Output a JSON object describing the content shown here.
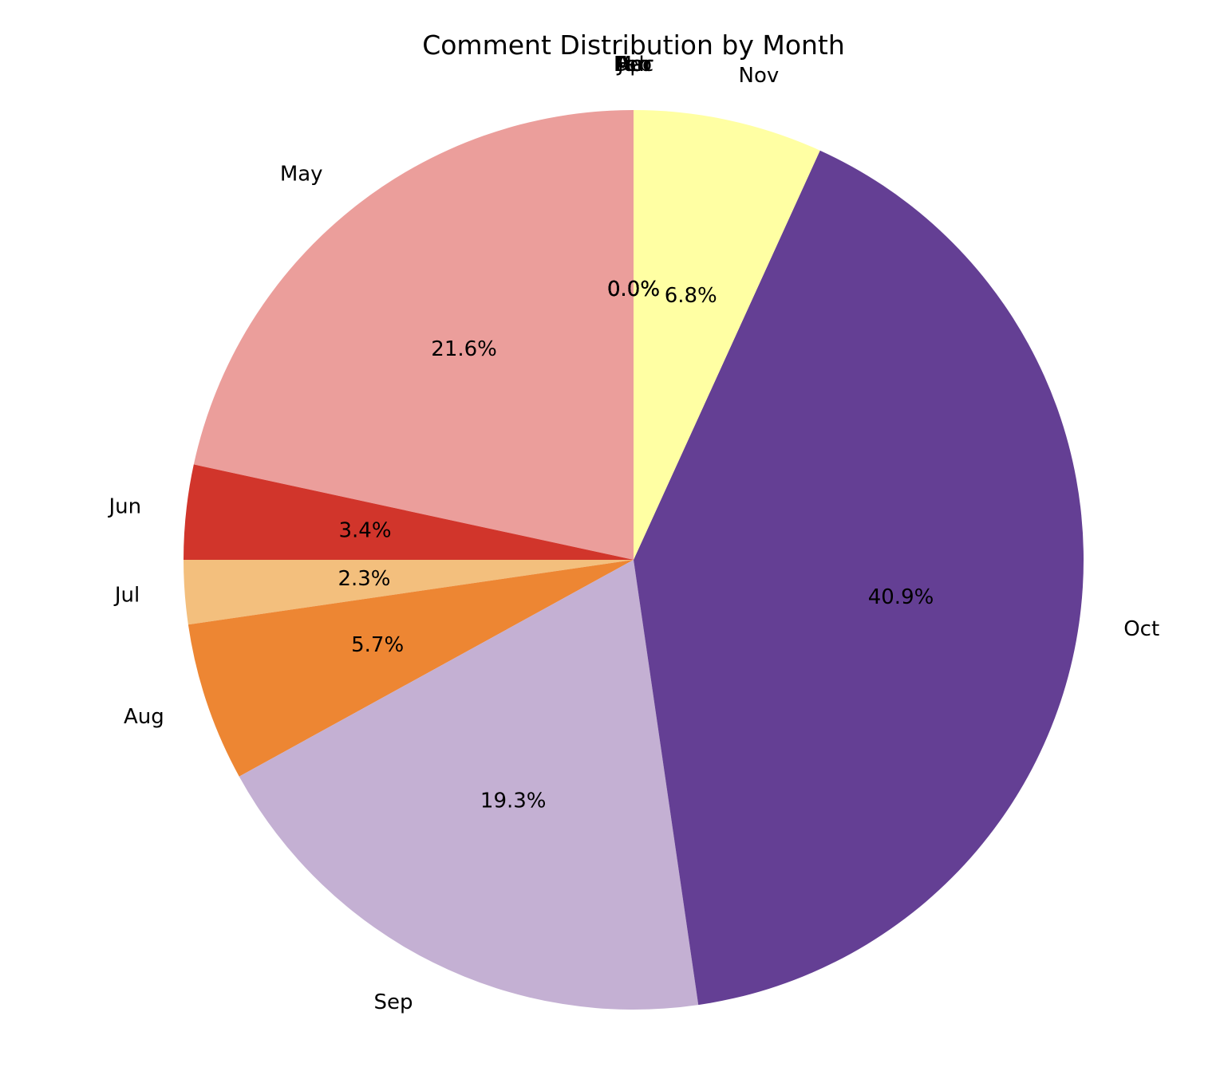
{
  "chart_data": {
    "type": "pie",
    "title": "Comment Distribution by Month",
    "start_angle_deg": 90,
    "direction": "counterclockwise",
    "slices": [
      {
        "label": "Jan",
        "value": 0.0,
        "pct_text": "0.0%",
        "color": "#5e3c99"
      },
      {
        "label": "Feb",
        "value": 0.0,
        "pct_text": "0.0%",
        "color": "#8c6bb1"
      },
      {
        "label": "Mar",
        "value": 0.0,
        "pct_text": "0.0%",
        "color": "#b2abd2"
      },
      {
        "label": "Apr",
        "value": 0.0,
        "pct_text": "0.0%",
        "color": "#f4a582"
      },
      {
        "label": "May",
        "value": 21.6,
        "pct_text": "21.6%",
        "color": "#eb9e9b"
      },
      {
        "label": "Jun",
        "value": 3.4,
        "pct_text": "3.4%",
        "color": "#d1352b"
      },
      {
        "label": "Jul",
        "value": 2.3,
        "pct_text": "2.3%",
        "color": "#f3bf7d"
      },
      {
        "label": "Aug",
        "value": 5.7,
        "pct_text": "5.7%",
        "color": "#ed8633"
      },
      {
        "label": "Sep",
        "value": 19.3,
        "pct_text": "19.3%",
        "color": "#c4b0d3"
      },
      {
        "label": "Oct",
        "value": 40.9,
        "pct_text": "40.9%",
        "color": "#643f94"
      },
      {
        "label": "Nov",
        "value": 6.8,
        "pct_text": "6.8%",
        "color": "#ffffa3"
      },
      {
        "label": "Dec",
        "value": 0.0,
        "pct_text": "0.0%",
        "color": "#fdb863"
      }
    ]
  }
}
